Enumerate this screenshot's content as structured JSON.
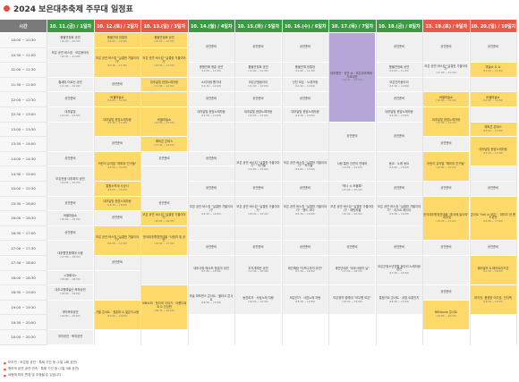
{
  "page_title": "2024 보은대추축제 주무대 일정표",
  "time_header": "시간",
  "days": [
    {
      "label": "10. 11.(금) / 1일차",
      "color": "#3c9a44"
    },
    {
      "label": "10. 12.(토) / 2일차",
      "color": "#e8594a"
    },
    {
      "label": "10. 13.(일) / 3일차",
      "color": "#e8594a"
    },
    {
      "label": "10. 14.(월) / 4일차",
      "color": "#3c9a44"
    },
    {
      "label": "10. 15.(화) / 5일차",
      "color": "#3c9a44"
    },
    {
      "label": "10. 16.(수) / 6일차",
      "color": "#3c9a44"
    },
    {
      "label": "10. 17.(목) / 7일차",
      "color": "#3c9a44"
    },
    {
      "label": "10. 18.(금) / 8일차",
      "color": "#3c9a44"
    },
    {
      "label": "10. 19.(토) / 9일차",
      "color": "#e8594a"
    },
    {
      "label": "10. 20.(일) / 10일차",
      "color": "#e8594a"
    }
  ],
  "times": [
    "10:00 ~ 10:30",
    "10:30 ~ 11:00",
    "11:00 ~ 11:30",
    "11:30 ~ 12:00",
    "12:00 ~ 12:30",
    "12:30 ~ 13:00",
    "13:00 ~ 13:30",
    "13:30 ~ 14:00",
    "14:00 ~ 14:30",
    "14:30 ~ 15:00",
    "15:00 ~ 15:30",
    "15:30 ~ 16:00",
    "16:00 ~ 16:30",
    "16:30 ~ 17:00",
    "17:00 ~ 17:30",
    "17:30 ~ 18:00",
    "18:00 ~ 18:30",
    "18:30 ~ 19:00",
    "19:00 ~ 19:30",
    "19:30 ~ 20:00",
    "20:00 ~ 20:30"
  ],
  "notes": [
    "보조연 : 보은읍 공연 · 특례 기간 등 (1일 2회 공연)",
    "축하곡 공연 공연 연속 · 특례 기간 등 (1일 3회 공연)",
    "내용에 따라 변경 및 조정될 수 있습니다."
  ],
  "legend": {
    "green": "#3c9a44",
    "red": "#e8594a",
    "yellow": "#fcd968",
    "purple": "#b6a6d8",
    "gray": "#f0f0f0"
  },
  "cells": [
    {
      "d": 0,
      "r0": 0,
      "r1": 1,
      "t": "풍물연정회 공연",
      "s": "(10:00 ~ 10:30)",
      "c": "w"
    },
    {
      "d": 0,
      "r0": 1,
      "r1": 2,
      "t": "보은 공연 버스킹 · 보은동아리",
      "s": "(10:30 ~ 11:00)",
      "c": "w"
    },
    {
      "d": 0,
      "r0": 2,
      "r1": 3,
      "t": "",
      "s": "",
      "c": "w"
    },
    {
      "d": 0,
      "r0": 3,
      "r1": 4,
      "t": "줄새미 어르신 공연",
      "s": "(11:30 ~ 12:00)",
      "c": "w"
    },
    {
      "d": 0,
      "r0": 4,
      "r1": 5,
      "t": "공연준비",
      "s": "",
      "c": "w"
    },
    {
      "d": 0,
      "r0": 5,
      "r1": 6,
      "t": "대추달빛",
      "s": "(12:30 ~ 13:00)",
      "c": "w"
    },
    {
      "d": 0,
      "r0": 6,
      "r1": 8,
      "t": "",
      "s": "",
      "c": "w"
    },
    {
      "d": 0,
      "r0": 8,
      "r1": 9,
      "t": "공연준비",
      "s": "",
      "c": "w"
    },
    {
      "d": 0,
      "r0": 9,
      "r1": 11,
      "t": "보은관광 대추파티 공연",
      "s": "(14:30 ~ 15:30)",
      "c": "w"
    },
    {
      "d": 0,
      "r0": 11,
      "r1": 12,
      "t": "공연준비",
      "s": "",
      "c": "w"
    },
    {
      "d": 0,
      "r0": 12,
      "r1": 13,
      "t": "버블마술쇼",
      "s": "(16:00 ~ 16:30)",
      "c": "w"
    },
    {
      "d": 0,
      "r0": 13,
      "r1": 14,
      "t": "공연준비",
      "s": "",
      "c": "w"
    },
    {
      "d": 0,
      "r0": 14,
      "r1": 16,
      "t": "대추향연청예대 사람",
      "s": "(17:00 ~ 18:00)",
      "c": "w"
    },
    {
      "d": 0,
      "r0": 16,
      "r1": 17,
      "t": "<개회식>",
      "s": "(18:00 ~ 18:30)",
      "c": "w"
    },
    {
      "d": 0,
      "r0": 17,
      "r1": 18,
      "t": "대추고향예술단 축하공연",
      "s": "(18:30 ~ 19:00)",
      "c": "w"
    },
    {
      "d": 0,
      "r0": 18,
      "r1": 20,
      "t": "개막축하공연",
      "s": "(19:00 ~ 20:00)",
      "c": "w"
    },
    {
      "d": 0,
      "r0": 20,
      "r1": 21,
      "t": "개막공연 · 축하공연",
      "s": "",
      "c": "w"
    },
    {
      "d": 1,
      "r0": 0,
      "r1": 1,
      "t": "풍물연재 방통방",
      "s": "(10:00 ~ 10:30)",
      "c": "y"
    },
    {
      "d": 1,
      "r0": 1,
      "r1": 3,
      "t": "보은 공연 버스킹 \"실결한 가을이야기\"",
      "s": "(10:30 ~ 11:30)",
      "c": "y"
    },
    {
      "d": 1,
      "r0": 3,
      "r1": 4,
      "t": "공연준비",
      "s": "",
      "c": "w"
    },
    {
      "d": 1,
      "r0": 4,
      "r1": 5,
      "t": "버블마술쇼",
      "s": "(12:00 ~ 12:30)",
      "c": "y"
    },
    {
      "d": 1,
      "r0": 5,
      "r1": 7,
      "t": "대추달빛 한맘노래자랑",
      "s": "(12:30 ~ 13:30)",
      "c": "y"
    },
    {
      "d": 1,
      "r0": 7,
      "r1": 8,
      "t": "공연준비",
      "s": "",
      "c": "w"
    },
    {
      "d": 1,
      "r0": 8,
      "r1": 10,
      "t": "어린이 뮤지컬 \"해피와 친구들\"",
      "s": "(14:00 ~ 15:00)",
      "c": "y"
    },
    {
      "d": 1,
      "r0": 10,
      "r1": 11,
      "t": "통합소쩍새 사상식",
      "s": "(15:00 ~ 15:30)",
      "c": "y"
    },
    {
      "d": 1,
      "r0": 11,
      "r1": 12,
      "t": "대추달빛 한맘노래자랑",
      "s": "(15:30 ~ 16:00)",
      "c": "y"
    },
    {
      "d": 1,
      "r0": 12,
      "r1": 13,
      "t": "공연준비",
      "s": "",
      "c": "w"
    },
    {
      "d": 1,
      "r0": 13,
      "r1": 15,
      "t": "보은 공연 버스킹 \"실결한 가을이야기\"",
      "s": "(16:30 ~ 17:30)",
      "c": "y"
    },
    {
      "d": 1,
      "r0": 15,
      "r1": 16,
      "t": "공연준비",
      "s": "",
      "c": "w"
    },
    {
      "d": 1,
      "r0": 16,
      "r1": 18,
      "t": "",
      "s": "",
      "c": "w"
    },
    {
      "d": 1,
      "r0": 18,
      "r1": 20,
      "t": "가을 콘서트 · 청춘파 & 젊은이시음",
      "s": "(19:00 ~ 20:00)",
      "c": "y"
    },
    {
      "d": 2,
      "r0": 0,
      "r1": 1,
      "t": "풍물연정회 공연",
      "s": "(10:00 ~ 10:30)",
      "c": "y"
    },
    {
      "d": 2,
      "r0": 1,
      "r1": 3,
      "t": "보은 공연 버스킹 \"실결한 가을이야기\"",
      "s": "(10:30 ~ 11:30)",
      "c": "y"
    },
    {
      "d": 2,
      "r0": 3,
      "r1": 4,
      "t": "대추달빛 한맘노래자랑",
      "s": "(11:30 ~ 12:00)",
      "c": "y"
    },
    {
      "d": 2,
      "r0": 4,
      "r1": 5,
      "t": "",
      "s": "",
      "c": "y"
    },
    {
      "d": 2,
      "r0": 5,
      "r1": 7,
      "t": "버블마술쇼",
      "s": "(12:30 ~ 13:30)",
      "c": "y"
    },
    {
      "d": 2,
      "r0": 7,
      "r1": 8,
      "t": "해피콘 콘테스",
      "s": "(13:30 ~ 14:00)",
      "c": "y"
    },
    {
      "d": 2,
      "r0": 8,
      "r1": 9,
      "t": "공연준비",
      "s": "",
      "c": "w"
    },
    {
      "d": 2,
      "r0": 9,
      "r1": 11,
      "t": "",
      "s": "",
      "c": "w"
    },
    {
      "d": 2,
      "r0": 11,
      "r1": 12,
      "t": "공연준비",
      "s": "",
      "c": "w"
    },
    {
      "d": 2,
      "r0": 12,
      "r1": 13,
      "t": "보은 공연 버스킹 \"실결한 가을이야기\"",
      "s": "(16:00 ~ 16:30)",
      "c": "y"
    },
    {
      "d": 2,
      "r0": 13,
      "r1": 15,
      "t": "한국대추향경연대회 \"사랑과 및 공연\"",
      "s": "(16:30 ~ 17:30)",
      "c": "y"
    },
    {
      "d": 2,
      "r0": 15,
      "r1": 17,
      "t": "",
      "s": "",
      "c": "w"
    },
    {
      "d": 2,
      "r0": 17,
      "r1": 20,
      "t": "오빠소와 · 등자의 이야기 · 아름다워요 & 진성판",
      "s": "(18:30 ~ 20:00)",
      "c": "y"
    },
    {
      "d": 3,
      "r0": 0,
      "r1": 2,
      "t": "공연준비",
      "s": "",
      "c": "w"
    },
    {
      "d": 3,
      "r0": 2,
      "r1": 3,
      "t": "중평관에 청춘 공연",
      "s": "(11:00 ~ 11:30)",
      "c": "w"
    },
    {
      "d": 3,
      "r0": 3,
      "r1": 4,
      "t": "소리자랑 뽐기대",
      "s": "(11:30 ~ 12:00)",
      "c": "w"
    },
    {
      "d": 3,
      "r0": 4,
      "r1": 5,
      "t": "공연준비",
      "s": "",
      "c": "w"
    },
    {
      "d": 3,
      "r0": 5,
      "r1": 6,
      "t": "대추달빛 한맘노래자랑",
      "s": "(12:30 ~ 13:00)",
      "c": "w"
    },
    {
      "d": 3,
      "r0": 6,
      "r1": 8,
      "t": "",
      "s": "",
      "c": "w"
    },
    {
      "d": 3,
      "r0": 8,
      "r1": 9,
      "t": "공연준비",
      "s": "",
      "c": "w"
    },
    {
      "d": 3,
      "r0": 9,
      "r1": 10,
      "t": "",
      "s": "",
      "c": "w"
    },
    {
      "d": 3,
      "r0": 10,
      "r1": 11,
      "t": "공연준비",
      "s": "",
      "c": "w"
    },
    {
      "d": 3,
      "r0": 11,
      "r1": 13,
      "t": "보은 공연 버스킹 \"실결한 가을이야기\"",
      "s": "(15:30 ~ 16:30)",
      "c": "w"
    },
    {
      "d": 3,
      "r0": 13,
      "r1": 14,
      "t": "",
      "s": "",
      "c": "w"
    },
    {
      "d": 3,
      "r0": 14,
      "r1": 15,
      "t": "공연준비",
      "s": "",
      "c": "w"
    },
    {
      "d": 3,
      "r0": 15,
      "r1": 17,
      "t": "대추사랑 예사조 청춘의 공연",
      "s": "(17:30 ~ 18:30)",
      "c": "w"
    },
    {
      "d": 3,
      "r0": 17,
      "r1": 19,
      "t": "마술 퍼포먼스 콘서트 · 불타오 콘서트",
      "s": "(18:30 ~ 19:30)",
      "c": "w"
    },
    {
      "d": 4,
      "r0": 0,
      "r1": 2,
      "t": "공연준비",
      "s": "",
      "c": "w"
    },
    {
      "d": 4,
      "r0": 2,
      "r1": 3,
      "t": "풍물연정회 공연",
      "s": "(11:00 ~ 11:30)",
      "c": "w"
    },
    {
      "d": 4,
      "r0": 3,
      "r1": 4,
      "t": "보은군청동아리",
      "s": "(11:30 ~ 12:00)",
      "c": "w"
    },
    {
      "d": 4,
      "r0": 4,
      "r1": 5,
      "t": "공연준비",
      "s": "",
      "c": "w"
    },
    {
      "d": 4,
      "r0": 5,
      "r1": 6,
      "t": "대추달빛 한맘노래자랑",
      "s": "(12:30 ~ 13:00)",
      "c": "w"
    },
    {
      "d": 4,
      "r0": 6,
      "r1": 8,
      "t": "",
      "s": "",
      "c": "w"
    },
    {
      "d": 4,
      "r0": 8,
      "r1": 10,
      "t": "보은 공연 버스킹 \"실결한 가을이야기\" · 작가들",
      "s": "(14:00 ~ 15:00)",
      "c": "w"
    },
    {
      "d": 4,
      "r0": 10,
      "r1": 11,
      "t": "공연준비",
      "s": "",
      "c": "w"
    },
    {
      "d": 4,
      "r0": 11,
      "r1": 13,
      "t": "보은 공연 버스킹 \"실결한 가을이야기\"",
      "s": "(15:30 ~ 16:30)",
      "c": "w"
    },
    {
      "d": 4,
      "r0": 13,
      "r1": 14,
      "t": "",
      "s": "",
      "c": "w"
    },
    {
      "d": 4,
      "r0": 14,
      "r1": 15,
      "t": "공연준비",
      "s": "",
      "c": "w"
    },
    {
      "d": 4,
      "r0": 15,
      "r1": 17,
      "t": "무지개예전 공연",
      "s": "(17:30 ~ 18:30)",
      "c": "w"
    },
    {
      "d": 4,
      "r0": 17,
      "r1": 19,
      "t": "동천피자 · 사림노래 자랑",
      "s": "(18:30 ~ 19:30)",
      "c": "w"
    },
    {
      "d": 5,
      "r0": 0,
      "r1": 2,
      "t": "공연준비",
      "s": "",
      "c": "w"
    },
    {
      "d": 5,
      "r0": 2,
      "r1": 3,
      "t": "풍물연재 방통방",
      "s": "(11:00 ~ 11:30)",
      "c": "w"
    },
    {
      "d": 5,
      "r0": 3,
      "r1": 4,
      "t": "신천 보은 · 노래자랑",
      "s": "(11:30 ~ 12:00)",
      "c": "w"
    },
    {
      "d": 5,
      "r0": 4,
      "r1": 5,
      "t": "공연준비",
      "s": "",
      "c": "w"
    },
    {
      "d": 5,
      "r0": 5,
      "r1": 6,
      "t": "대추달빛 한맘노래자랑",
      "s": "(12:30 ~ 13:00)",
      "c": "w"
    },
    {
      "d": 5,
      "r0": 6,
      "r1": 8,
      "t": "",
      "s": "",
      "c": "w"
    },
    {
      "d": 5,
      "r0": 8,
      "r1": 10,
      "t": "보은 공연 버스킹 \"실결한 가을이야기\" · 작가들",
      "s": "(14:00 ~ 15:00)",
      "c": "w"
    },
    {
      "d": 5,
      "r0": 10,
      "r1": 11,
      "t": "공연준비",
      "s": "",
      "c": "w"
    },
    {
      "d": 5,
      "r0": 11,
      "r1": 13,
      "t": "보은 공연 버스킹 \"실결한 가을이야기\" · 밴드 코다",
      "s": "(15:30 ~ 16:30)",
      "c": "w"
    },
    {
      "d": 5,
      "r0": 13,
      "r1": 14,
      "t": "",
      "s": "",
      "c": "w"
    },
    {
      "d": 5,
      "r0": 14,
      "r1": 15,
      "t": "공연준비",
      "s": "",
      "c": "w"
    },
    {
      "d": 5,
      "r0": 15,
      "r1": 17,
      "t": "태건예랑 \"다프나과의 공연\"",
      "s": "(17:30 ~ 18:30)",
      "c": "w"
    },
    {
      "d": 5,
      "r0": 17,
      "r1": 19,
      "t": "보은연가 · 사업노래 자랑",
      "s": "(18:30 ~ 19:30)",
      "c": "w"
    },
    {
      "d": 6,
      "r0": 0,
      "r1": 6,
      "t": "대추향연 · 공연 쇼 · 보은대추축제 · 가요대전",
      "s": "(10:00 ~ 13:00)",
      "c": "p"
    },
    {
      "d": 6,
      "r0": 6,
      "r1": 8,
      "t": "공연준비",
      "s": "",
      "c": "w"
    },
    {
      "d": 6,
      "r0": 8,
      "r1": 10,
      "t": "사랑 통한 인연의 연애하",
      "s": "(14:00 ~ 15:00)",
      "c": "w"
    },
    {
      "d": 6,
      "r0": 10,
      "r1": 11,
      "t": "\"하나 시 보물록\"",
      "s": "(15:00 ~ 15:30)",
      "c": "w"
    },
    {
      "d": 6,
      "r0": 11,
      "r1": 13,
      "t": "보은 공연 버스킹 \"실결한 가을이야기\" · 래빗하울",
      "s": "(15:30 ~ 16:30)",
      "c": "w"
    },
    {
      "d": 6,
      "r0": 13,
      "r1": 14,
      "t": "",
      "s": "",
      "c": "w"
    },
    {
      "d": 6,
      "r0": 14,
      "r1": 15,
      "t": "공연준비",
      "s": "",
      "c": "w"
    },
    {
      "d": 6,
      "r0": 15,
      "r1": 17,
      "t": "새천년대추 \"대추사랑의 날\"",
      "s": "(17:30 ~ 18:30)",
      "c": "w"
    },
    {
      "d": 6,
      "r0": 17,
      "r1": 19,
      "t": "보은정약 출예대 \"아우름 보은\"",
      "s": "(18:30 ~ 19:30)",
      "c": "w"
    },
    {
      "d": 7,
      "r0": 0,
      "r1": 2,
      "t": "공연준비",
      "s": "",
      "c": "w"
    },
    {
      "d": 7,
      "r0": 2,
      "r1": 3,
      "t": "풍물연정회 공연",
      "s": "(11:00 ~ 11:30)",
      "c": "w"
    },
    {
      "d": 7,
      "r0": 3,
      "r1": 4,
      "t": "보은연가동아리",
      "s": "(11:30 ~ 12:00)",
      "c": "w"
    },
    {
      "d": 7,
      "r0": 4,
      "r1": 5,
      "t": "공연준비",
      "s": "",
      "c": "w"
    },
    {
      "d": 7,
      "r0": 5,
      "r1": 6,
      "t": "대추달빛 한맘노래자랑",
      "s": "(12:30 ~ 13:00)",
      "c": "w"
    },
    {
      "d": 7,
      "r0": 6,
      "r1": 8,
      "t": "공연준비",
      "s": "",
      "c": "w"
    },
    {
      "d": 7,
      "r0": 8,
      "r1": 10,
      "t": "동요 · 노래 동요",
      "s": "(14:00 ~ 15:00)",
      "c": "w"
    },
    {
      "d": 7,
      "r0": 10,
      "r1": 11,
      "t": "공연준비",
      "s": "",
      "c": "w"
    },
    {
      "d": 7,
      "r0": 11,
      "r1": 13,
      "t": "보은 공연 버스킹 \"실결한 가을이야기\" · 리스트 페스타",
      "s": "(15:30 ~ 16:30)",
      "c": "w"
    },
    {
      "d": 7,
      "r0": 13,
      "r1": 14,
      "t": "",
      "s": "",
      "c": "w"
    },
    {
      "d": 7,
      "r0": 14,
      "r1": 15,
      "t": "공연준비",
      "s": "",
      "c": "w"
    },
    {
      "d": 7,
      "r0": 15,
      "r1": 17,
      "t": "보은군청소년연합 동아리 노래자랑 경연",
      "s": "(17:30 ~ 18:30)",
      "c": "w"
    },
    {
      "d": 7,
      "r0": 17,
      "r1": 19,
      "t": "통합가요 콘서트 · 공업 트롯잔치",
      "s": "(18:30 ~ 19:30)",
      "c": "w"
    },
    {
      "d": 8,
      "r0": 0,
      "r1": 2,
      "t": "공연준비",
      "s": "",
      "c": "w"
    },
    {
      "d": 8,
      "r0": 2,
      "r1": 3,
      "t": "보은 공연 버스킹 \"실결한 가을이야기\"",
      "s": "(11:00 ~ 11:30)",
      "c": "w"
    },
    {
      "d": 8,
      "r0": 3,
      "r1": 4,
      "t": "",
      "s": "",
      "c": "w"
    },
    {
      "d": 8,
      "r0": 4,
      "r1": 5,
      "t": "버블마술쇼",
      "s": "(12:00 ~ 12:30)",
      "c": "y"
    },
    {
      "d": 8,
      "r0": 5,
      "r1": 7,
      "t": "대추달빛 한맘노래자랑",
      "s": "(12:30 ~ 13:30)",
      "c": "y"
    },
    {
      "d": 8,
      "r0": 7,
      "r1": 8,
      "t": "공연준비",
      "s": "",
      "c": "w"
    },
    {
      "d": 8,
      "r0": 8,
      "r1": 10,
      "t": "어린이 뮤지컬 \"해피와 친구들\"",
      "s": "(14:00 ~ 15:00)",
      "c": "y"
    },
    {
      "d": 8,
      "r0": 10,
      "r1": 11,
      "t": "공연준비",
      "s": "",
      "c": "w"
    },
    {
      "d": 8,
      "r0": 11,
      "r1": 14,
      "t": "한국대추향경연대회 \"출국에 놀이와\" · 대추빛",
      "s": "(15:30 ~ 17:00)",
      "c": "y"
    },
    {
      "d": 8,
      "r0": 14,
      "r1": 15,
      "t": "공연준비",
      "s": "",
      "c": "w"
    },
    {
      "d": 8,
      "r0": 15,
      "r1": 17,
      "t": "",
      "s": "",
      "c": "w"
    },
    {
      "d": 8,
      "r0": 17,
      "r1": 18,
      "t": "공연준비",
      "s": "",
      "c": "w"
    },
    {
      "d": 8,
      "r0": 18,
      "r1": 20,
      "t": "BBHouse 콘서트",
      "s": "(19:00 ~ 20:00)",
      "c": "y"
    },
    {
      "d": 9,
      "r0": 0,
      "r1": 2,
      "t": "공연준비",
      "s": "",
      "c": "w"
    },
    {
      "d": 9,
      "r0": 2,
      "r1": 3,
      "t": "마술쇼 & 쇼",
      "s": "(11:00 ~ 11:30)",
      "c": "y"
    },
    {
      "d": 9,
      "r0": 3,
      "r1": 4,
      "t": "",
      "s": "",
      "c": "w"
    },
    {
      "d": 9,
      "r0": 4,
      "r1": 5,
      "t": "버블마술쇼",
      "s": "(12:00 ~ 12:30)",
      "c": "y"
    },
    {
      "d": 9,
      "r0": 5,
      "r1": 6,
      "t": "",
      "s": "",
      "c": "w"
    },
    {
      "d": 9,
      "r0": 6,
      "r1": 7,
      "t": "해피콘 콘테스",
      "s": "(13:00 ~ 13:30)",
      "c": "y"
    },
    {
      "d": 9,
      "r0": 7,
      "r1": 9,
      "t": "대추달빛 한맘노래자랑",
      "s": "(13:30 ~ 14:30)",
      "c": "y"
    },
    {
      "d": 9,
      "r0": 9,
      "r1": 10,
      "t": "",
      "s": "",
      "c": "w"
    },
    {
      "d": 9,
      "r0": 10,
      "r1": 11,
      "t": "공연준비",
      "s": "",
      "c": "w"
    },
    {
      "d": 9,
      "r0": 11,
      "r1": 14,
      "t": "콘서트 \"Fall in 보은\" · 파티오 한 밴드공연",
      "s": "(15:30 ~ 17:00)",
      "c": "y"
    },
    {
      "d": 9,
      "r0": 14,
      "r1": 15,
      "t": "공연준비",
      "s": "",
      "c": "w"
    },
    {
      "d": 9,
      "r0": 15,
      "r1": 17,
      "t": "패러발즈 & 페어트리즈콘",
      "s": "(17:30 ~ 18:30)",
      "c": "y"
    },
    {
      "d": 9,
      "r0": 17,
      "r1": 19,
      "t": "파이언, 풍경한 이지호, 인지백",
      "s": "(18:30 ~ 19:30)",
      "c": "y"
    }
  ]
}
